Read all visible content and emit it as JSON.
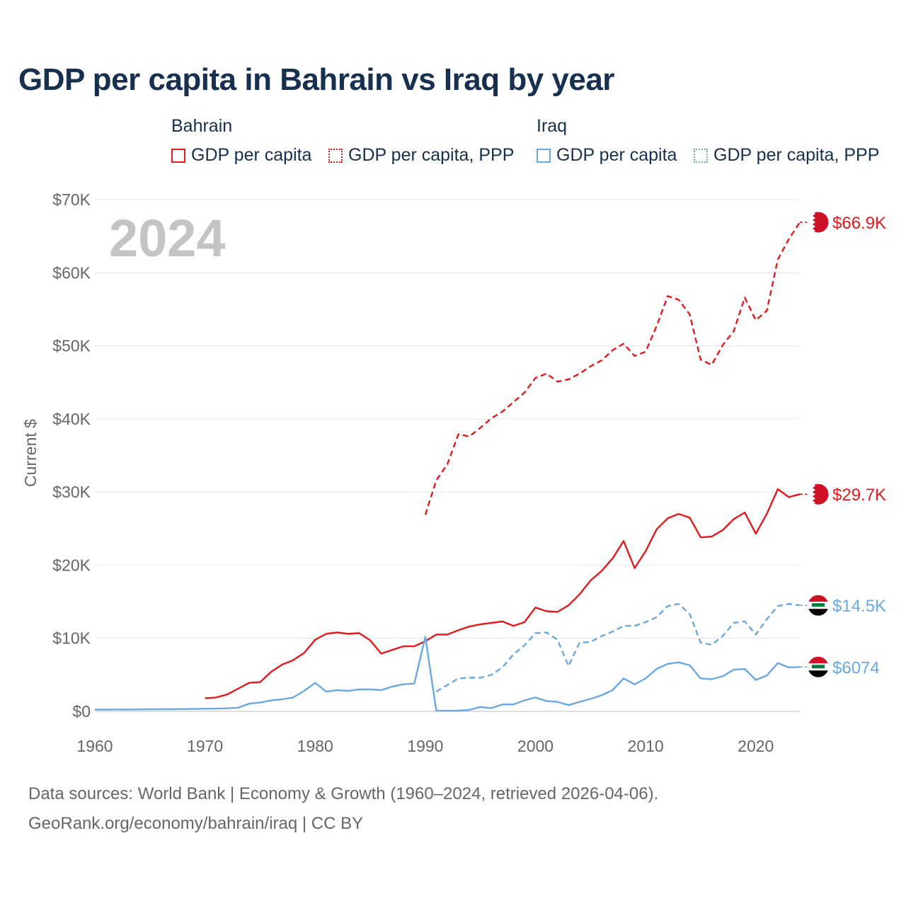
{
  "title": "GDP per capita in Bahrain vs Iraq by year",
  "legend": {
    "groups": [
      {
        "name": "Bahrain",
        "items": [
          {
            "label": "GDP per capita",
            "color": "#e3191c",
            "style": "solid"
          },
          {
            "label": "GDP per capita, PPP",
            "color": "#e3191c",
            "style": "dotted"
          }
        ]
      },
      {
        "name": "Iraq",
        "items": [
          {
            "label": "GDP per capita",
            "color": "#6aa8e2",
            "style": "solid"
          },
          {
            "label": "GDP per capita, PPP",
            "color": "#6aa8e2",
            "style": "dotted"
          }
        ]
      }
    ]
  },
  "chart_data": {
    "type": "line",
    "title": "GDP per capita in Bahrain vs Iraq by year",
    "year_label": "2024",
    "xlabel": "",
    "ylabel": "Current $",
    "xlim": [
      1960,
      2024
    ],
    "ylim": [
      0,
      70000
    ],
    "x_ticks": [
      1960,
      1970,
      1980,
      1990,
      2000,
      2010,
      2020
    ],
    "y_ticks": [
      {
        "value": 0,
        "label": "$0"
      },
      {
        "value": 10000,
        "label": "$10K"
      },
      {
        "value": 20000,
        "label": "$20K"
      },
      {
        "value": 30000,
        "label": "$30K"
      },
      {
        "value": 40000,
        "label": "$40K"
      },
      {
        "value": 50000,
        "label": "$50K"
      },
      {
        "value": 60000,
        "label": "$60K"
      },
      {
        "value": 70000,
        "label": "$70K"
      }
    ],
    "grid": true,
    "series": [
      {
        "name": "Bahrain GDP per capita",
        "country": "Bahrain",
        "color": "#e3191c",
        "dash": false,
        "end_label": "$29.7K",
        "flag": "bahrain",
        "x": [
          1970,
          1971,
          1972,
          1973,
          1974,
          1975,
          1976,
          1977,
          1978,
          1979,
          1980,
          1981,
          1982,
          1983,
          1984,
          1985,
          1986,
          1987,
          1988,
          1989,
          1990,
          1991,
          1992,
          1993,
          1994,
          1995,
          1996,
          1997,
          1998,
          1999,
          2000,
          2001,
          2002,
          2003,
          2004,
          2005,
          2006,
          2007,
          2008,
          2009,
          2010,
          2011,
          2012,
          2013,
          2014,
          2015,
          2016,
          2017,
          2018,
          2019,
          2020,
          2021,
          2022,
          2023,
          2024
        ],
        "values": [
          1800,
          1900,
          2300,
          3100,
          3900,
          4000,
          5400,
          6400,
          7000,
          8000,
          9800,
          10600,
          10800,
          10600,
          10700,
          9700,
          7900,
          8400,
          8900,
          8900,
          9600,
          10500,
          10500,
          11100,
          11600,
          11900,
          12100,
          12300,
          11700,
          12200,
          14200,
          13700,
          13600,
          14500,
          16000,
          17900,
          19200,
          20900,
          23300,
          19600,
          21900,
          24900,
          26400,
          27000,
          26500,
          23800,
          23900,
          24800,
          26300,
          27200,
          24300,
          27000,
          30400,
          29300,
          29700
        ]
      },
      {
        "name": "Bahrain GDP per capita, PPP",
        "country": "Bahrain",
        "color": "#e3191c",
        "dash": true,
        "end_label": "$66.9K",
        "flag": "bahrain",
        "x": [
          1990,
          1991,
          1992,
          1993,
          1994,
          1995,
          1996,
          1997,
          1998,
          1999,
          2000,
          2001,
          2002,
          2003,
          2004,
          2005,
          2006,
          2007,
          2008,
          2009,
          2010,
          2011,
          2012,
          2013,
          2014,
          2015,
          2016,
          2017,
          2018,
          2019,
          2020,
          2021,
          2022,
          2023,
          2024
        ],
        "values": [
          26900,
          31600,
          33800,
          37900,
          37600,
          38800,
          40100,
          41000,
          42300,
          43600,
          45600,
          46200,
          45100,
          45400,
          46200,
          47200,
          48000,
          49400,
          50300,
          48600,
          49200,
          52700,
          56800,
          56300,
          54300,
          48100,
          47400,
          50100,
          52000,
          56600,
          53500,
          54800,
          61800,
          64600,
          66900
        ]
      },
      {
        "name": "Iraq GDP per capita",
        "country": "Iraq",
        "color": "#6aa8e2",
        "dash": false,
        "end_label": "$6074",
        "flag": "iraq",
        "x": [
          1960,
          1961,
          1962,
          1963,
          1964,
          1965,
          1966,
          1967,
          1968,
          1969,
          1970,
          1971,
          1972,
          1973,
          1974,
          1975,
          1976,
          1977,
          1978,
          1979,
          1980,
          1981,
          1982,
          1983,
          1984,
          1985,
          1986,
          1987,
          1988,
          1989,
          1990,
          1991,
          1992,
          1993,
          1994,
          1995,
          1996,
          1997,
          1998,
          1999,
          2000,
          2001,
          2002,
          2003,
          2004,
          2005,
          2006,
          2007,
          2008,
          2009,
          2010,
          2011,
          2012,
          2013,
          2014,
          2015,
          2016,
          2017,
          2018,
          2019,
          2020,
          2021,
          2022,
          2023,
          2024
        ],
        "values": [
          230,
          240,
          250,
          245,
          270,
          280,
          300,
          290,
          310,
          330,
          360,
          380,
          420,
          500,
          1050,
          1200,
          1500,
          1650,
          1900,
          2800,
          3900,
          2700,
          2900,
          2800,
          3000,
          3000,
          2900,
          3400,
          3700,
          3800,
          10200,
          100,
          80,
          100,
          200,
          600,
          450,
          950,
          950,
          1500,
          1900,
          1400,
          1300,
          850,
          1300,
          1700,
          2200,
          2900,
          4500,
          3700,
          4500,
          5800,
          6500,
          6700,
          6300,
          4500,
          4400,
          4800,
          5700,
          5800,
          4300,
          4900,
          6600,
          6000,
          6074
        ]
      },
      {
        "name": "Iraq GDP per capita, PPP",
        "country": "Iraq",
        "color": "#6aa8e2",
        "dash": true,
        "end_label": "$14.5K",
        "flag": "iraq",
        "x": [
          1991,
          1992,
          1993,
          1994,
          1995,
          1996,
          1997,
          1998,
          1999,
          2000,
          2001,
          2002,
          2003,
          2004,
          2005,
          2006,
          2007,
          2008,
          2009,
          2010,
          2011,
          2012,
          2013,
          2014,
          2015,
          2016,
          2017,
          2018,
          2019,
          2020,
          2021,
          2022,
          2023,
          2024
        ],
        "values": [
          2700,
          3600,
          4500,
          4600,
          4600,
          5000,
          6000,
          7800,
          9000,
          10700,
          10800,
          9800,
          6200,
          9400,
          9500,
          10300,
          10900,
          11700,
          11700,
          12200,
          12900,
          14400,
          14700,
          13300,
          9400,
          9100,
          10300,
          12100,
          12300,
          10500,
          12600,
          14400,
          14700,
          14500
        ]
      }
    ]
  },
  "footer": {
    "line1": "Data sources: World Bank | Economy & Growth (1960–2024, retrieved 2026-04-06).",
    "line2": "GeoRank.org/economy/bahrain/iraq | CC BY"
  }
}
